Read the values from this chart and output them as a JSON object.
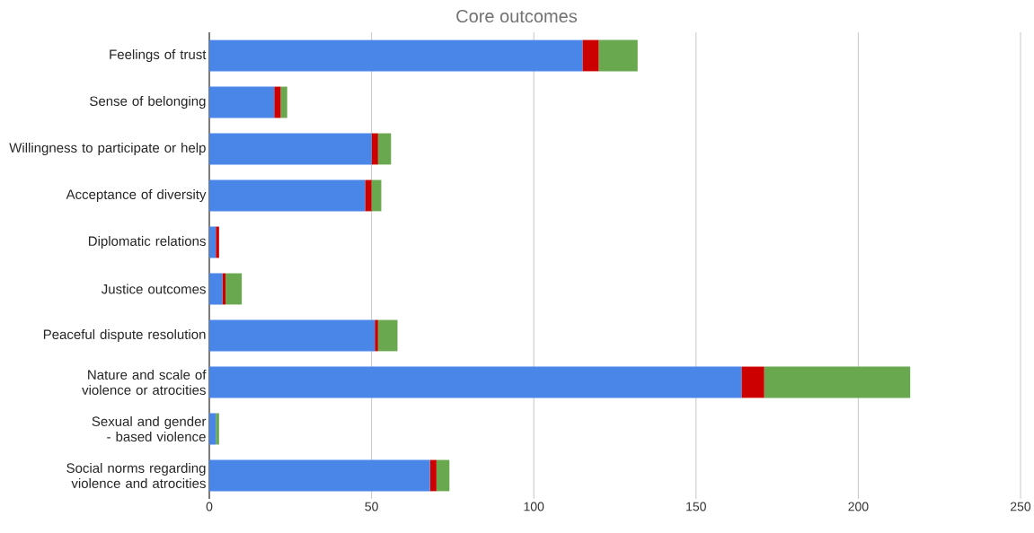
{
  "chart_data": {
    "type": "bar",
    "title": "Core outcomes",
    "orientation": "horizontal",
    "stacked": true,
    "grid": "x",
    "categories": [
      "Feelings of trust",
      "Sense of belonging",
      "Willingness to participate or help",
      "Acceptance of diversity",
      "Diplomatic relations",
      "Justice outcomes",
      "Peaceful dispute resolution",
      "Nature and scale of violence or atrocities",
      "Sexual and gender - based violence",
      "Social norms regarding violence and atrocities"
    ],
    "series": [
      {
        "color": "#4a86e8",
        "values": [
          115,
          20,
          50,
          48,
          2,
          4,
          51,
          164,
          2,
          68
        ]
      },
      {
        "color": "#cc0000",
        "values": [
          5,
          2,
          2,
          2,
          1,
          1,
          1,
          7,
          0,
          2
        ]
      },
      {
        "color": "#6aa84f",
        "values": [
          12,
          2,
          4,
          3,
          0,
          5,
          6,
          45,
          1,
          4
        ]
      }
    ],
    "xlim": [
      0,
      250
    ],
    "xticks": [
      0,
      50,
      100,
      150,
      200,
      250
    ]
  }
}
